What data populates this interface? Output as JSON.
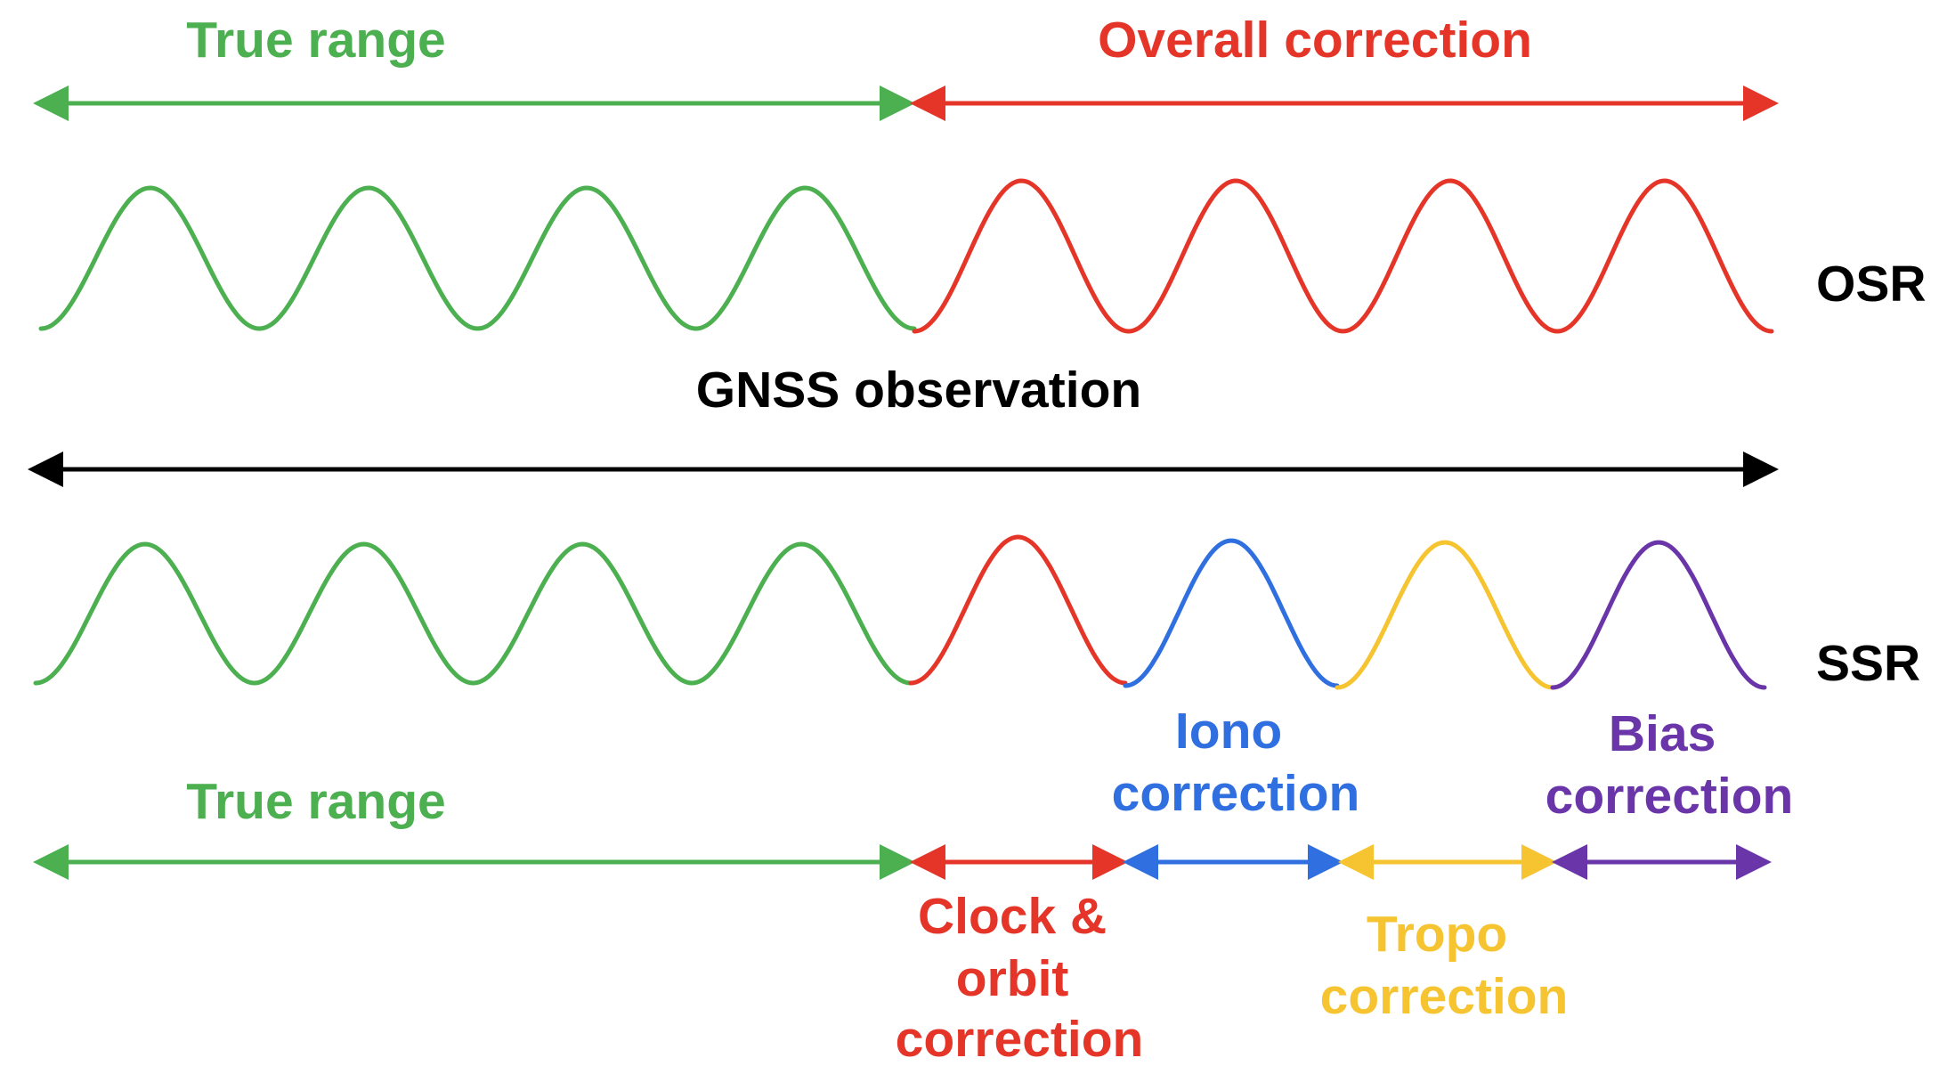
{
  "colors": {
    "green": "#4caf50",
    "red": "#e53528",
    "blue": "#2f6fe0",
    "yellow": "#f5c430",
    "purple": "#6a35a8",
    "black": "#000000"
  },
  "top": {
    "true_range_label": "True range",
    "overall_correction_label": "Overall correction",
    "row_label": "OSR"
  },
  "middle": {
    "observation_label": "GNSS observation"
  },
  "bottom": {
    "row_label": "SSR",
    "true_range_label": "True range",
    "iono_label": [
      "Iono",
      "correction"
    ],
    "bias_label": [
      "Bias",
      "correction"
    ],
    "clock_orbit_label": [
      "Clock &",
      "orbit",
      "correction"
    ],
    "tropo_label": [
      "Tropo",
      "correction"
    ]
  }
}
